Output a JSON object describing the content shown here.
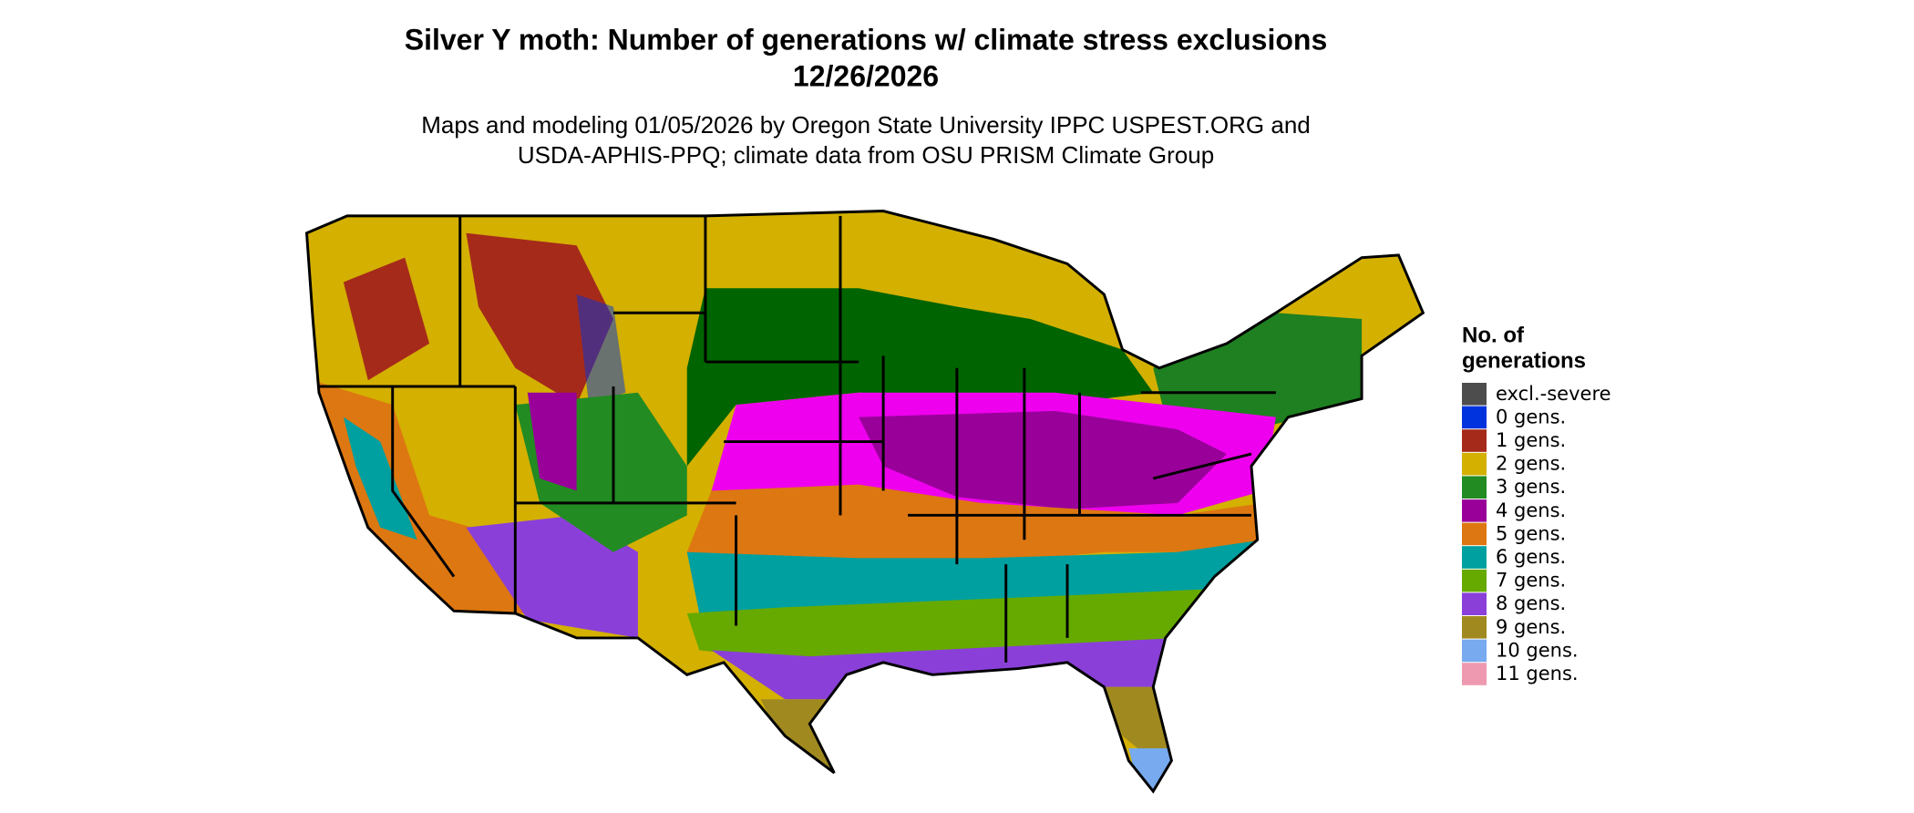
{
  "header": {
    "title": "Silver Y moth: Number of generations w/ climate stress exclusions",
    "date": "12/26/2026",
    "credit_lines": [
      "Maps and modeling 01/05/2026 by Oregon State University IPPC USPEST.ORG and",
      "USDA-APHIS-PPQ; climate data from OSU PRISM Climate Group"
    ]
  },
  "legend": {
    "title_lines": [
      "No. of",
      "generations"
    ],
    "items": [
      {
        "label": "excl.-severe",
        "color": "#4d4d4d"
      },
      {
        "label": "0 gens.",
        "color": "#0033dd"
      },
      {
        "label": "1 gens.",
        "color": "#a52a1a"
      },
      {
        "label": "2 gens.",
        "color": "#d4b000"
      },
      {
        "label": "3 gens.",
        "color": "#228b22"
      },
      {
        "label": "4 gens.",
        "color": "#990099"
      },
      {
        "label": "5 gens.",
        "color": "#dd7711"
      },
      {
        "label": "6 gens.",
        "color": "#00a0a0"
      },
      {
        "label": "7 gens.",
        "color": "#66aa00"
      },
      {
        "label": "8 gens.",
        "color": "#8a40d8"
      },
      {
        "label": "9 gens.",
        "color": "#a08a20"
      },
      {
        "label": "10 gens.",
        "color": "#77aaee"
      },
      {
        "label": "11 gens.",
        "color": "#ee99b0"
      }
    ]
  }
}
